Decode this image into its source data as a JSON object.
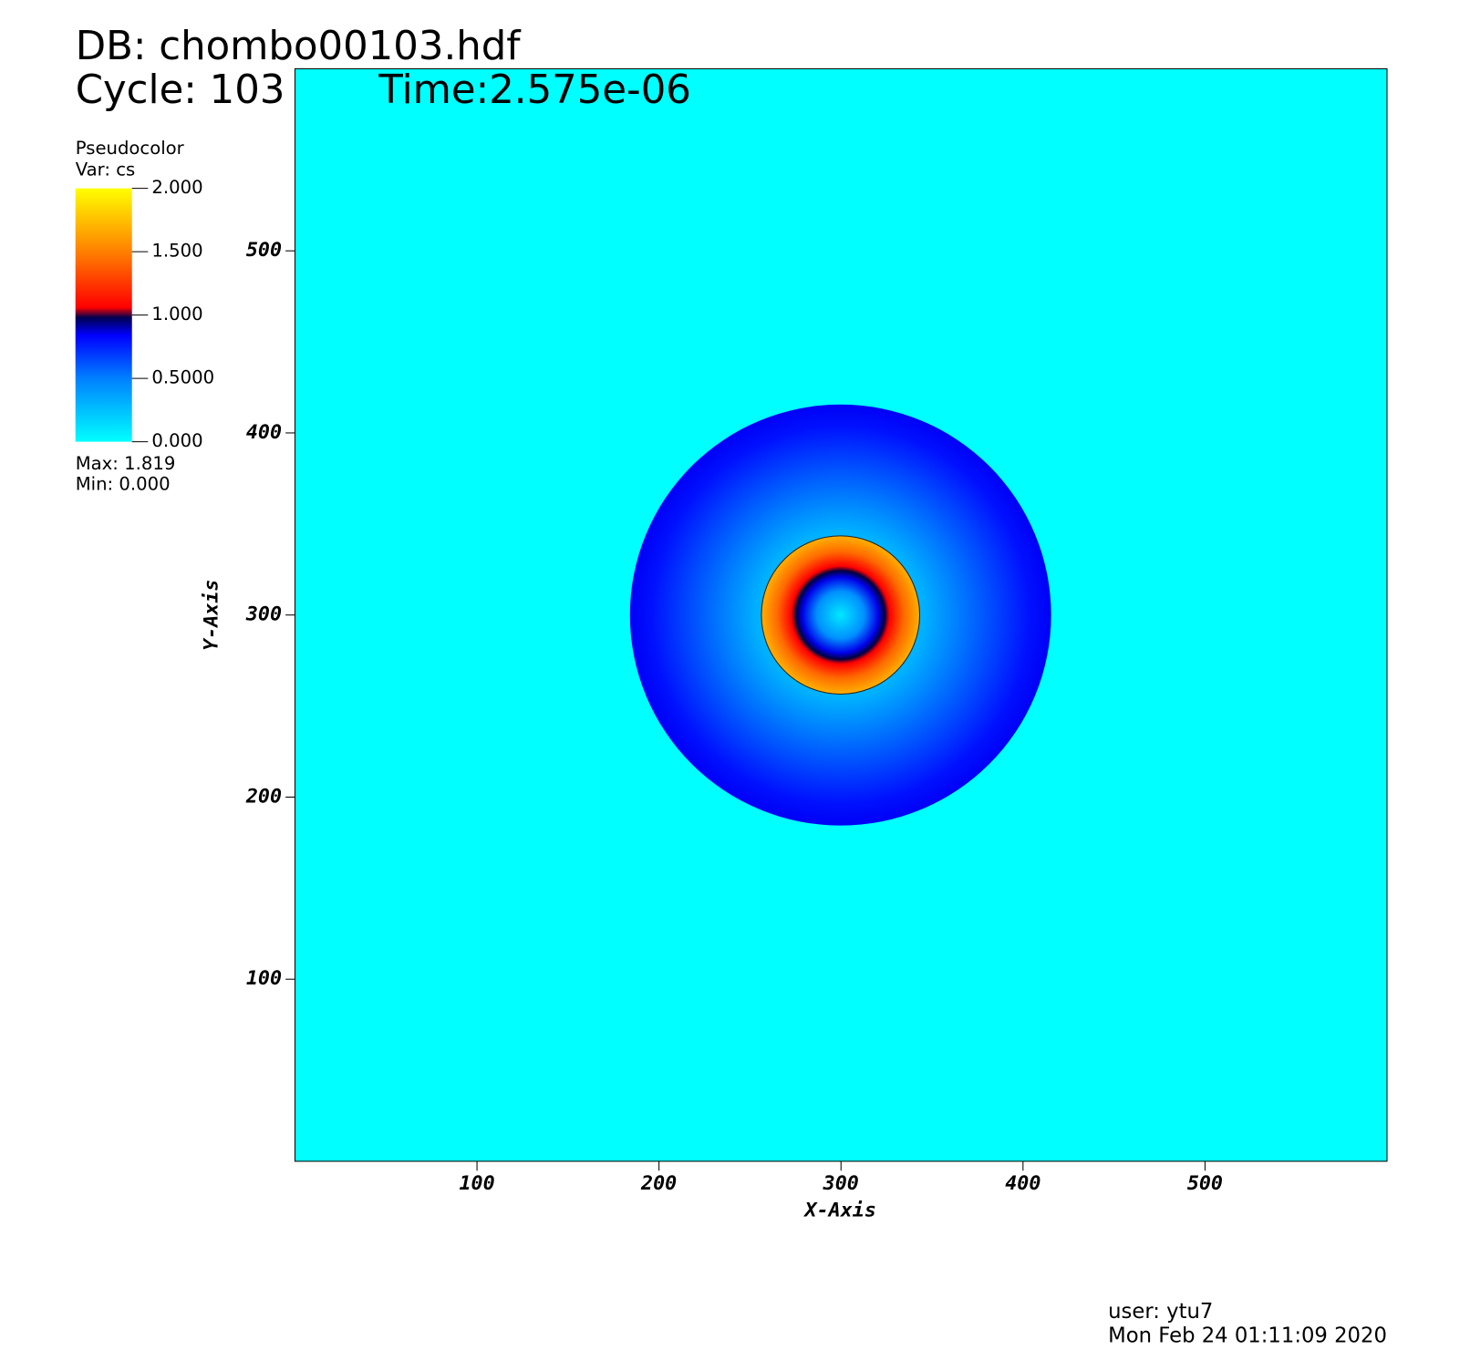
{
  "chart_data": {
    "type": "pseudocolor",
    "title": "DB: chombo00103.hdf",
    "cycle": "Cycle: 103",
    "time": "Time:2.575e-06",
    "x_label": "X-Axis",
    "y_label": "Y-Axis",
    "xlim": [
      0,
      600
    ],
    "ylim": [
      0,
      600
    ],
    "xticks": [
      100,
      200,
      300,
      400,
      500
    ],
    "yticks": [
      100,
      200,
      300,
      400,
      500
    ],
    "legend": {
      "title": "Pseudocolor",
      "variable": "Var: cs",
      "clim": [
        0,
        2
      ],
      "ticks": [
        {
          "value": 2,
          "label": "2.000"
        },
        {
          "value": 1.5,
          "label": "1.500"
        },
        {
          "value": 1,
          "label": "1.000"
        },
        {
          "value": 0.5,
          "label": "0.5000"
        },
        {
          "value": 0,
          "label": "0.000"
        }
      ],
      "max": "Max:  1.819",
      "min": "Min:  0.000"
    },
    "user": "user: ytu7",
    "date": "Mon Feb 24 01:11:09 2020"
  }
}
